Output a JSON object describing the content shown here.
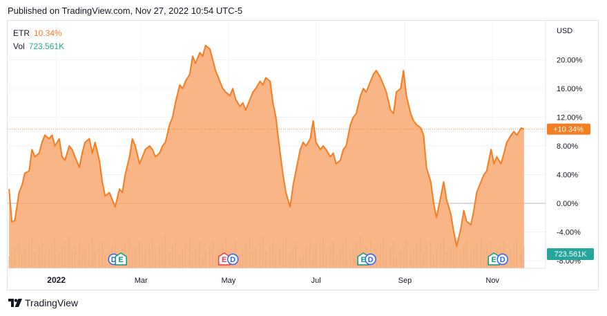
{
  "header": {
    "published_text": "Published on TradingView.com, Nov 27, 2022 10:54 UTC-5"
  },
  "legend": {
    "symbol": "ETR",
    "change": "10.34%",
    "vol_label": "Vol",
    "vol_value": "723.561K"
  },
  "footer": {
    "brand": "TradingView"
  },
  "colors": {
    "line": "#f57c1f",
    "area": "#f9a56b",
    "volume": "#26a69a",
    "axis_text": "#131722"
  },
  "chart_data": {
    "type": "area",
    "currency": "USD",
    "y_unit": "%",
    "ylim": [
      -8,
      24
    ],
    "y_ticks": [
      20,
      16,
      12,
      8,
      4,
      0,
      -4,
      -8
    ],
    "y_tick_labels": [
      "20.00%",
      "16.00%",
      "12.00%",
      "8.00%",
      "4.00%",
      "0.00%",
      "-4.00%",
      "-8.00%"
    ],
    "x_tick_labels": [
      "2022",
      "Mar",
      "May",
      "Jul",
      "Sep",
      "Nov"
    ],
    "x_tick_dates": [
      "2022-01-01",
      "2022-03-01",
      "2022-05-01",
      "2022-07-01",
      "2022-09-01",
      "2022-11-01"
    ],
    "xlim": [
      "2021-11-28",
      "2022-12-08"
    ],
    "last_value_label": "+10.34%",
    "last_volume_label": "723.561K",
    "grid": true,
    "series": [
      {
        "name": "ETR",
        "points": [
          [
            "2021-11-29",
            2.0
          ],
          [
            "2021-12-01",
            -2.6
          ],
          [
            "2021-12-03",
            -2.4
          ],
          [
            "2021-12-06",
            1.5
          ],
          [
            "2021-12-08",
            2.5
          ],
          [
            "2021-12-10",
            4.2
          ],
          [
            "2021-12-13",
            4.5
          ],
          [
            "2021-12-15",
            7.5
          ],
          [
            "2021-12-17",
            6.5
          ],
          [
            "2021-12-20",
            7.0
          ],
          [
            "2021-12-22",
            8.5
          ],
          [
            "2021-12-24",
            9.5
          ],
          [
            "2021-12-27",
            9.0
          ],
          [
            "2021-12-29",
            9.5
          ],
          [
            "2021-12-31",
            8.0
          ],
          [
            "2022-01-03",
            9.0
          ],
          [
            "2022-01-05",
            6.5
          ],
          [
            "2022-01-07",
            6.0
          ],
          [
            "2022-01-10",
            8.0
          ],
          [
            "2022-01-12",
            7.5
          ],
          [
            "2022-01-14",
            6.5
          ],
          [
            "2022-01-17",
            5.0
          ],
          [
            "2022-01-19",
            7.0
          ],
          [
            "2022-01-21",
            8.5
          ],
          [
            "2022-01-24",
            9.0
          ],
          [
            "2022-01-26",
            7.0
          ],
          [
            "2022-01-28",
            8.5
          ],
          [
            "2022-01-31",
            6.0
          ],
          [
            "2022-02-02",
            3.0
          ],
          [
            "2022-02-04",
            1.0
          ],
          [
            "2022-02-07",
            1.5
          ],
          [
            "2022-02-09",
            0.5
          ],
          [
            "2022-02-11",
            -0.5
          ],
          [
            "2022-02-14",
            2.0
          ],
          [
            "2022-02-16",
            1.5
          ],
          [
            "2022-02-18",
            4.0
          ],
          [
            "2022-02-21",
            6.5
          ],
          [
            "2022-02-23",
            9.0
          ],
          [
            "2022-02-25",
            8.0
          ],
          [
            "2022-02-28",
            5.5
          ],
          [
            "2022-03-02",
            6.5
          ],
          [
            "2022-03-04",
            7.5
          ],
          [
            "2022-03-07",
            8.0
          ],
          [
            "2022-03-09",
            7.5
          ],
          [
            "2022-03-11",
            6.5
          ],
          [
            "2022-03-14",
            7.0
          ],
          [
            "2022-03-16",
            8.0
          ],
          [
            "2022-03-18",
            8.5
          ],
          [
            "2022-03-21",
            11.0
          ],
          [
            "2022-03-23",
            12.0
          ],
          [
            "2022-03-25",
            14.0
          ],
          [
            "2022-03-28",
            16.5
          ],
          [
            "2022-03-30",
            16.0
          ],
          [
            "2022-04-01",
            17.0
          ],
          [
            "2022-04-04",
            18.0
          ],
          [
            "2022-04-06",
            20.5
          ],
          [
            "2022-04-08",
            19.5
          ],
          [
            "2022-04-11",
            21.0
          ],
          [
            "2022-04-13",
            20.5
          ],
          [
            "2022-04-15",
            22.0
          ],
          [
            "2022-04-18",
            21.5
          ],
          [
            "2022-04-20",
            20.0
          ],
          [
            "2022-04-22",
            18.5
          ],
          [
            "2022-04-25",
            17.0
          ],
          [
            "2022-04-27",
            16.0
          ],
          [
            "2022-04-29",
            15.5
          ],
          [
            "2022-05-02",
            15.0
          ],
          [
            "2022-05-04",
            16.0
          ],
          [
            "2022-05-06",
            14.5
          ],
          [
            "2022-05-09",
            13.5
          ],
          [
            "2022-05-11",
            14.0
          ],
          [
            "2022-05-13",
            13.0
          ],
          [
            "2022-05-16",
            14.5
          ],
          [
            "2022-05-18",
            15.5
          ],
          [
            "2022-05-20",
            16.0
          ],
          [
            "2022-05-23",
            17.0
          ],
          [
            "2022-05-25",
            16.5
          ],
          [
            "2022-05-27",
            17.5
          ],
          [
            "2022-05-30",
            17.0
          ],
          [
            "2022-06-01",
            14.0
          ],
          [
            "2022-06-03",
            12.0
          ],
          [
            "2022-06-06",
            7.0
          ],
          [
            "2022-06-08",
            4.0
          ],
          [
            "2022-06-10",
            1.5
          ],
          [
            "2022-06-13",
            -0.5
          ],
          [
            "2022-06-15",
            2.5
          ],
          [
            "2022-06-17",
            4.5
          ],
          [
            "2022-06-20",
            7.5
          ],
          [
            "2022-06-22",
            8.5
          ],
          [
            "2022-06-24",
            8.0
          ],
          [
            "2022-06-27",
            9.0
          ],
          [
            "2022-06-29",
            11.5
          ],
          [
            "2022-07-01",
            8.5
          ],
          [
            "2022-07-04",
            7.5
          ],
          [
            "2022-07-06",
            8.0
          ],
          [
            "2022-07-08",
            7.5
          ],
          [
            "2022-07-11",
            6.5
          ],
          [
            "2022-07-13",
            7.0
          ],
          [
            "2022-07-15",
            5.5
          ],
          [
            "2022-07-18",
            6.0
          ],
          [
            "2022-07-20",
            7.5
          ],
          [
            "2022-07-22",
            8.0
          ],
          [
            "2022-07-25",
            11.0
          ],
          [
            "2022-07-27",
            12.0
          ],
          [
            "2022-07-29",
            12.5
          ],
          [
            "2022-08-01",
            15.0
          ],
          [
            "2022-08-03",
            16.0
          ],
          [
            "2022-08-05",
            15.5
          ],
          [
            "2022-08-08",
            17.0
          ],
          [
            "2022-08-10",
            18.0
          ],
          [
            "2022-08-12",
            18.5
          ],
          [
            "2022-08-15",
            17.5
          ],
          [
            "2022-08-17",
            16.5
          ],
          [
            "2022-08-19",
            15.5
          ],
          [
            "2022-08-22",
            13.0
          ],
          [
            "2022-08-24",
            12.5
          ],
          [
            "2022-08-26",
            15.5
          ],
          [
            "2022-08-29",
            16.0
          ],
          [
            "2022-08-31",
            18.5
          ],
          [
            "2022-09-02",
            15.0
          ],
          [
            "2022-09-05",
            12.5
          ],
          [
            "2022-09-07",
            11.5
          ],
          [
            "2022-09-09",
            11.0
          ],
          [
            "2022-09-12",
            10.5
          ],
          [
            "2022-09-14",
            9.5
          ],
          [
            "2022-09-16",
            5.0
          ],
          [
            "2022-09-19",
            3.0
          ],
          [
            "2022-09-21",
            0.0
          ],
          [
            "2022-09-23",
            -2.0
          ],
          [
            "2022-09-26",
            1.0
          ],
          [
            "2022-09-28",
            3.0
          ],
          [
            "2022-09-30",
            0.5
          ],
          [
            "2022-10-03",
            -1.5
          ],
          [
            "2022-10-05",
            -4.0
          ],
          [
            "2022-10-07",
            -6.0
          ],
          [
            "2022-10-10",
            -3.5
          ],
          [
            "2022-10-12",
            -1.0
          ],
          [
            "2022-10-14",
            -2.5
          ],
          [
            "2022-10-17",
            -3.0
          ],
          [
            "2022-10-19",
            -1.0
          ],
          [
            "2022-10-21",
            1.5
          ],
          [
            "2022-10-24",
            3.0
          ],
          [
            "2022-10-26",
            4.0
          ],
          [
            "2022-10-28",
            4.5
          ],
          [
            "2022-10-31",
            7.5
          ],
          [
            "2022-11-02",
            5.5
          ],
          [
            "2022-11-04",
            6.5
          ],
          [
            "2022-11-07",
            5.5
          ],
          [
            "2022-11-09",
            7.0
          ],
          [
            "2022-11-11",
            8.5
          ],
          [
            "2022-11-14",
            9.5
          ],
          [
            "2022-11-16",
            10.0
          ],
          [
            "2022-11-18",
            9.5
          ],
          [
            "2022-11-21",
            10.5
          ],
          [
            "2022-11-23",
            10.34
          ]
        ]
      }
    ],
    "event_markers": [
      {
        "date": "2022-02-10",
        "label": "D",
        "kind": "dividend"
      },
      {
        "date": "2022-02-15",
        "label": "E",
        "kind": "earnings"
      },
      {
        "date": "2022-04-28",
        "label": "E",
        "kind": "earnings"
      },
      {
        "date": "2022-05-04",
        "label": "D",
        "kind": "dividend"
      },
      {
        "date": "2022-08-03",
        "label": "E",
        "kind": "earnings"
      },
      {
        "date": "2022-08-08",
        "label": "D",
        "kind": "dividend"
      },
      {
        "date": "2022-11-02",
        "label": "E",
        "kind": "earnings"
      },
      {
        "date": "2022-11-08",
        "label": "D",
        "kind": "dividend"
      }
    ]
  }
}
